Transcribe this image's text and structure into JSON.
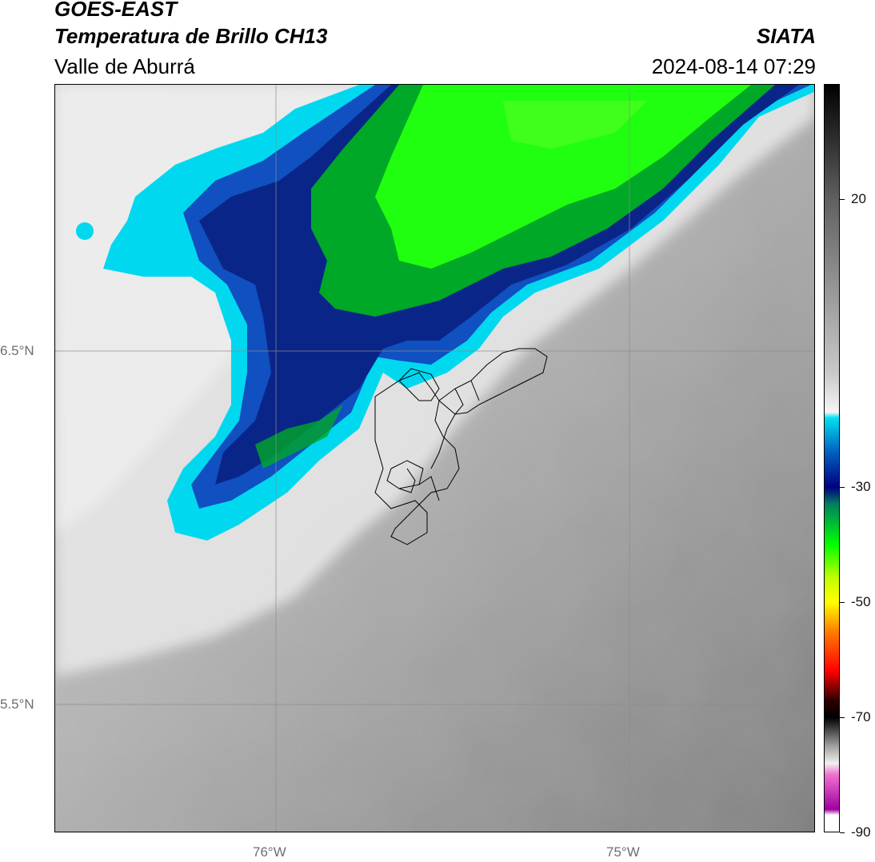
{
  "header": {
    "satellite": "GOES-EAST",
    "product": "Temperatura de Brillo CH13",
    "region": "Valle de Aburrá",
    "agency": "SIATA",
    "datetime": "2024-08-14 07:29"
  },
  "map": {
    "lat_labels": [
      "6.5°N",
      "5.5°N"
    ],
    "lon_labels": [
      "76°W",
      "75°W"
    ],
    "gridlines": "on",
    "background_scale": "grayscale brightness temperature",
    "cloud_colors": {
      "outer_edge": "#00d8f0",
      "mid": "#0a2a90",
      "core": "#20ff00",
      "core_dark": "#00a020"
    }
  },
  "colorbar": {
    "tick_labels": [
      "20",
      "-30",
      "-50",
      "-70",
      "-90"
    ],
    "tick_values": [
      20,
      -30,
      -50,
      -70,
      -90
    ],
    "range": [
      -90,
      40
    ],
    "stops": [
      {
        "value": 40,
        "color": "#000000"
      },
      {
        "value": 20,
        "color": "#606060"
      },
      {
        "value": -10,
        "color": "#c8c8c8"
      },
      {
        "value": -17,
        "color": "#f5f5f5"
      },
      {
        "value": -18,
        "color": "#00e0f0"
      },
      {
        "value": -24,
        "color": "#0060c0"
      },
      {
        "value": -30,
        "color": "#000080"
      },
      {
        "value": -33,
        "color": "#008060"
      },
      {
        "value": -40,
        "color": "#00ff00"
      },
      {
        "value": -46,
        "color": "#c8ff00"
      },
      {
        "value": -50,
        "color": "#ffff00"
      },
      {
        "value": -55,
        "color": "#ff8000"
      },
      {
        "value": -62,
        "color": "#ff0000"
      },
      {
        "value": -67,
        "color": "#300000"
      },
      {
        "value": -70,
        "color": "#000000"
      },
      {
        "value": -75,
        "color": "#a0a0a0"
      },
      {
        "value": -78,
        "color": "#f0f0f0"
      },
      {
        "value": -80,
        "color": "#f070d0"
      },
      {
        "value": -86,
        "color": "#a000a0"
      },
      {
        "value": -87,
        "color": "#ffffff"
      },
      {
        "value": -90,
        "color": "#ffffff"
      }
    ]
  }
}
